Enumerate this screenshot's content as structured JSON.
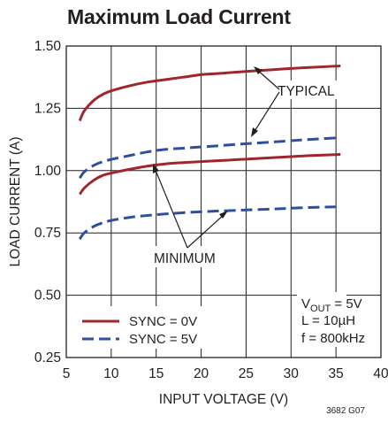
{
  "title": "Maximum Load Current",
  "figure_id": "3682 G07",
  "colors": {
    "sync_0v": "#a0262d",
    "sync_5v": "#2e4f9e",
    "grid": "#231f20",
    "text": "#231f20"
  },
  "chart_data": {
    "type": "line",
    "title": "Maximum Load Current",
    "xlabel": "INPUT VOLTAGE (V)",
    "ylabel": "LOAD CURRENT (A)",
    "xlim": [
      5,
      40
    ],
    "ylim": [
      0.25,
      1.5
    ],
    "xticks": [
      5,
      10,
      15,
      20,
      25,
      30,
      35,
      40
    ],
    "yticks": [
      0.25,
      0.5,
      0.75,
      1.0,
      1.25,
      1.5
    ],
    "ytick_labels": [
      "0.25",
      "0.50",
      "0.75",
      "1.00",
      "1.25",
      "1.50"
    ],
    "grid": true,
    "series": [
      {
        "name": "SYNC = 0V",
        "group": "TYPICAL",
        "style": "solid",
        "color": "#a0262d",
        "x": [
          6.5,
          7,
          8,
          9,
          10,
          12,
          14,
          16,
          18,
          20,
          22,
          25,
          28,
          30,
          32,
          35.5
        ],
        "y": [
          1.2,
          1.24,
          1.28,
          1.305,
          1.32,
          1.34,
          1.355,
          1.365,
          1.375,
          1.385,
          1.39,
          1.398,
          1.405,
          1.41,
          1.414,
          1.42
        ]
      },
      {
        "name": "SYNC = 5V",
        "group": "TYPICAL",
        "style": "dashed",
        "color": "#2e4f9e",
        "x": [
          6.5,
          7,
          8,
          9,
          10,
          12,
          14,
          16,
          18,
          20,
          22,
          25,
          28,
          30,
          32,
          35.5
        ],
        "y": [
          0.97,
          0.995,
          1.02,
          1.035,
          1.045,
          1.06,
          1.075,
          1.085,
          1.09,
          1.095,
          1.1,
          1.108,
          1.115,
          1.12,
          1.125,
          1.132
        ]
      },
      {
        "name": "SYNC = 0V",
        "group": "MINIMUM",
        "style": "solid",
        "color": "#a0262d",
        "x": [
          6.5,
          7,
          8,
          9,
          10,
          12,
          14,
          16,
          18,
          20,
          22,
          25,
          28,
          30,
          32,
          35.5
        ],
        "y": [
          0.905,
          0.93,
          0.96,
          0.98,
          0.99,
          1.005,
          1.018,
          1.027,
          1.032,
          1.036,
          1.04,
          1.046,
          1.052,
          1.056,
          1.06,
          1.065
        ]
      },
      {
        "name": "SYNC = 5V",
        "group": "MINIMUM",
        "style": "dashed",
        "color": "#2e4f9e",
        "x": [
          6.5,
          7,
          8,
          9,
          10,
          12,
          14,
          16,
          18,
          20,
          22,
          25,
          28,
          30,
          32,
          35.5
        ],
        "y": [
          0.725,
          0.75,
          0.775,
          0.79,
          0.8,
          0.812,
          0.82,
          0.826,
          0.831,
          0.835,
          0.838,
          0.842,
          0.846,
          0.849,
          0.852,
          0.855
        ]
      }
    ],
    "annotations": {
      "typical": "TYPICAL",
      "minimum": "MINIMUM",
      "conditions": {
        "vout_prefix": "V",
        "vout_sub": "OUT",
        "vout_value": " = 5V",
        "inductor": "L = 10µH",
        "frequency": "f = 800kHz"
      }
    },
    "legend": {
      "placement": "bottom-left",
      "entries": [
        {
          "label": "SYNC = 0V",
          "style": "solid",
          "color": "#a0262d"
        },
        {
          "label": "SYNC = 5V",
          "style": "dashed",
          "color": "#2e4f9e"
        }
      ]
    }
  }
}
